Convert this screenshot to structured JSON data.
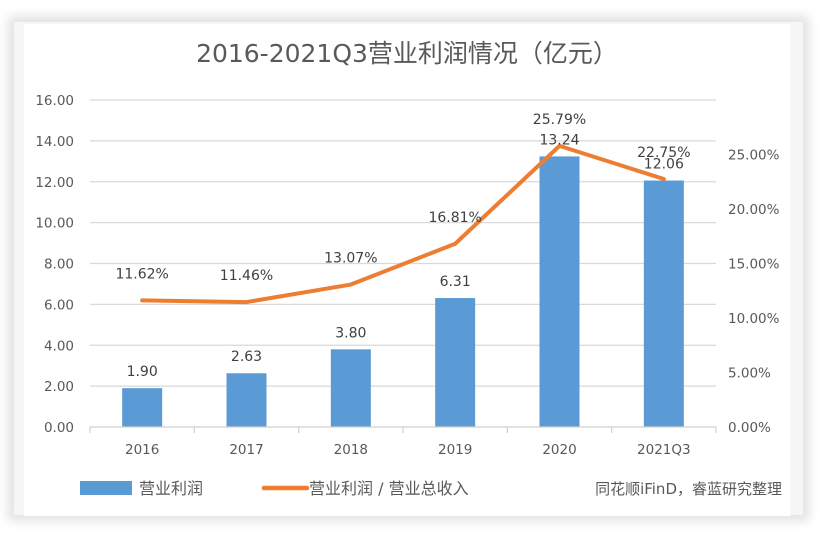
{
  "chart_data": {
    "type": "bar",
    "title": "2016-2021Q3营业利润情况（亿元）",
    "categories": [
      "2016",
      "2017",
      "2018",
      "2019",
      "2020",
      "2021Q3"
    ],
    "series": [
      {
        "name": "营业利润",
        "type": "bar",
        "axis": "left",
        "color": "#5b9bd5",
        "values": [
          1.9,
          2.63,
          3.8,
          6.31,
          13.24,
          12.06
        ],
        "labels": [
          "1.90",
          "2.63",
          "3.80",
          "6.31",
          "13.24",
          "12.06"
        ]
      },
      {
        "name": "营业利润 / 营业总收入",
        "type": "line",
        "axis": "right",
        "color": "#ed7d31",
        "values": [
          11.62,
          11.46,
          13.07,
          16.81,
          25.79,
          22.75
        ],
        "labels": [
          "11.62%",
          "11.46%",
          "13.07%",
          "16.81%",
          "25.79%",
          "22.75%"
        ]
      }
    ],
    "y_left": {
      "range": [
        0,
        16
      ],
      "ticks": [
        "0.00",
        "2.00",
        "4.00",
        "6.00",
        "8.00",
        "10.00",
        "12.00",
        "14.00",
        "16.00"
      ],
      "tick_values": [
        0,
        2,
        4,
        6,
        8,
        10,
        12,
        14,
        16
      ]
    },
    "y_right": {
      "range": [
        0,
        30
      ],
      "ticks": [
        "0.00%",
        "5.00%",
        "10.00%",
        "15.00%",
        "20.00%",
        "25.00%"
      ],
      "tick_values": [
        0,
        5,
        10,
        15,
        20,
        25
      ]
    },
    "xlabel": "",
    "ylabel": "",
    "grid": true,
    "legend_position": "bottom",
    "source_note": "同花顺iFinD，睿蓝研究整理"
  }
}
